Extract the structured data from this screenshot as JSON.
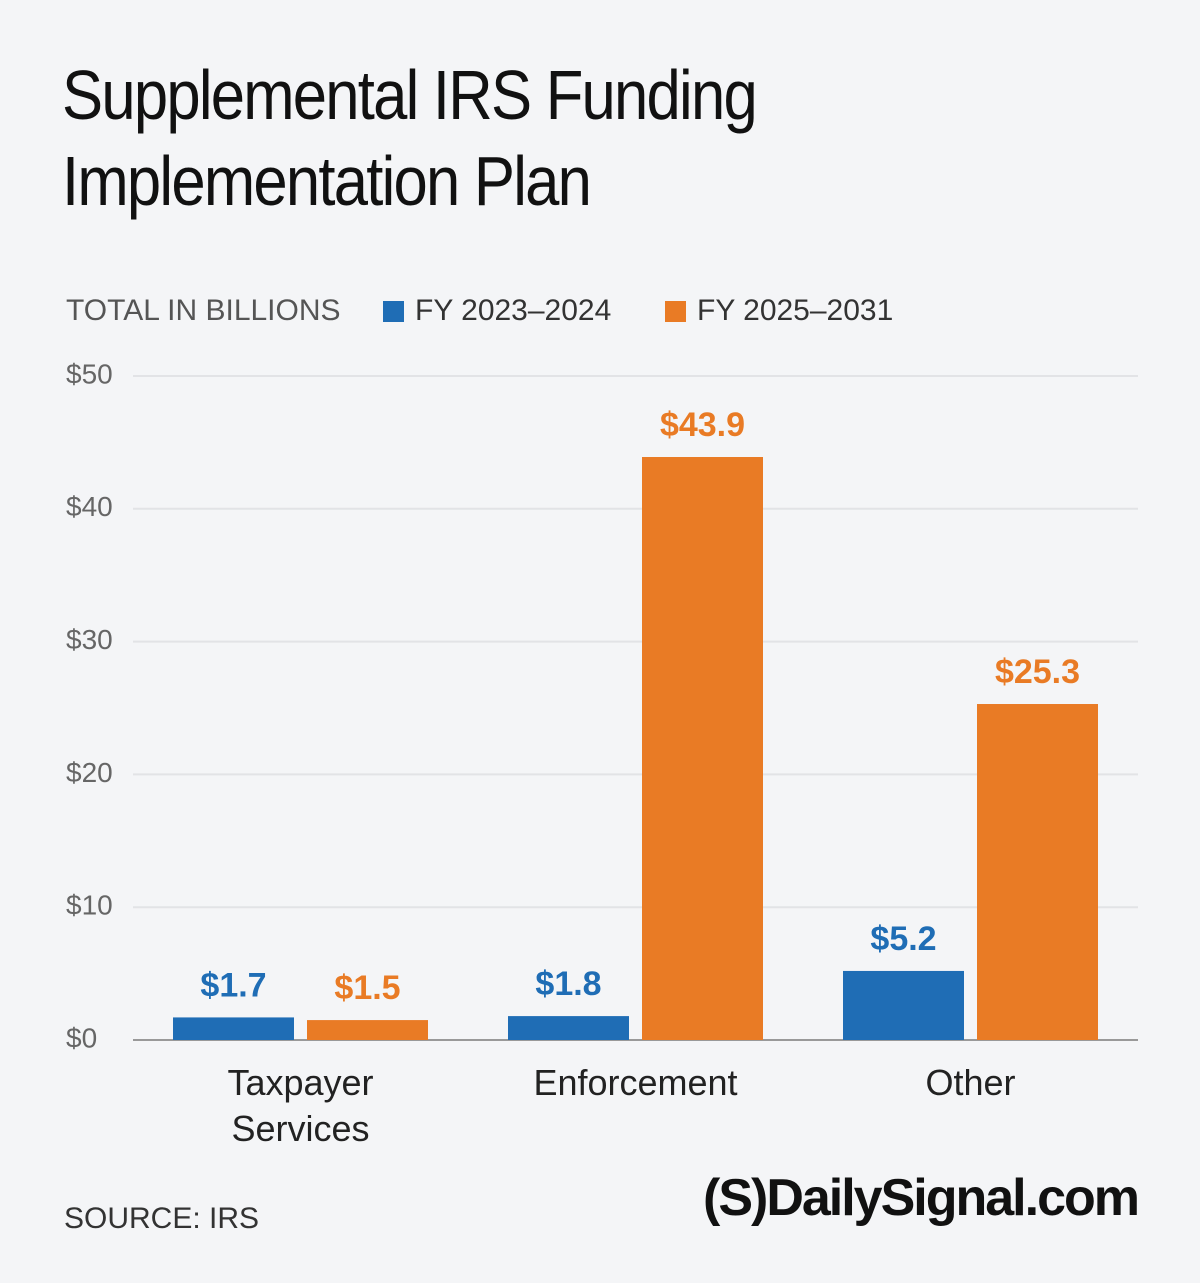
{
  "chart_data": {
    "type": "bar",
    "title": "Supplemental IRS Funding Implementation Plan",
    "y_label": "TOTAL IN BILLIONS",
    "categories": [
      "Taxpayer Services",
      "Enforcement",
      "Other"
    ],
    "series": [
      {
        "name": "FY 2023–2024",
        "color": "#1f6db5",
        "values": [
          1.7,
          1.8,
          5.2
        ],
        "value_labels": [
          "$1.7",
          "$1.8",
          "$5.2"
        ]
      },
      {
        "name": "FY 2025–2031",
        "color": "#e97b25",
        "values": [
          1.5,
          43.9,
          25.3
        ],
        "value_labels": [
          "$1.5",
          "$43.9",
          "$25.3"
        ]
      }
    ],
    "ylim": [
      0,
      50
    ],
    "yticks": [
      {
        "value": 0,
        "label": "$0"
      },
      {
        "value": 10,
        "label": "$10"
      },
      {
        "value": 20,
        "label": "$20"
      },
      {
        "value": 30,
        "label": "$30"
      },
      {
        "value": 40,
        "label": "$40"
      },
      {
        "value": 50,
        "label": "$50"
      }
    ],
    "grid": true,
    "source": "SOURCE: IRS",
    "logo": "(S)DailySignal.com"
  }
}
